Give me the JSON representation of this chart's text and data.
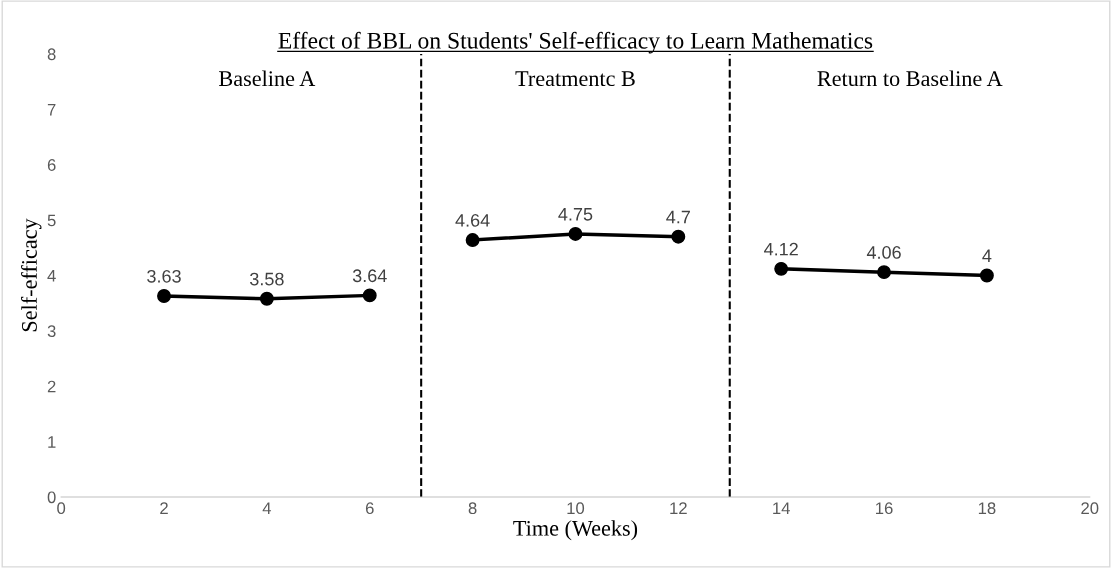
{
  "chart_data": {
    "type": "line",
    "title": "Effect of BBL on Students' Self-efficacy to Learn Mathematics",
    "xlabel": "Time (Weeks)",
    "ylabel": "Self-efficacy",
    "series": [
      {
        "color": "#000000",
        "x": [
          2,
          4,
          6
        ],
        "values": [
          3.63,
          3.58,
          3.64
        ]
      },
      {
        "color": "#000000",
        "x": [
          8,
          10,
          12
        ],
        "values": [
          4.64,
          4.75,
          4.7
        ]
      },
      {
        "color": "#000000",
        "x": [
          14,
          16,
          18
        ],
        "values": [
          4.12,
          4.06,
          4
        ]
      }
    ],
    "xlim": [
      0,
      20
    ],
    "xticks": [
      0,
      2,
      4,
      6,
      8,
      10,
      12,
      14,
      16,
      18,
      20
    ],
    "ylim": [
      0,
      8
    ],
    "yticks": [
      0,
      1,
      2,
      3,
      4,
      5,
      6,
      7,
      8
    ],
    "ref_lines": [
      {
        "axis": "x",
        "value": 7,
        "color": "#000000",
        "line_style": "dashed"
      },
      {
        "axis": "x",
        "value": 13,
        "color": "#000000",
        "line_style": "dashed"
      }
    ],
    "annotations": [
      "Baseline A",
      "Treatmentc B",
      "Return to Baseline A"
    ],
    "data_labels": true,
    "marker": "circle",
    "line_style": "solid",
    "grid": false,
    "legend": false
  }
}
